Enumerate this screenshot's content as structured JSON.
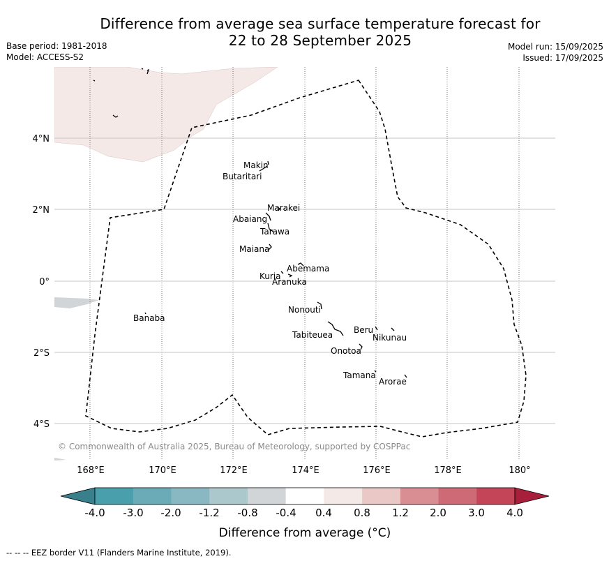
{
  "header": {
    "title_line1": "Difference from average sea surface temperature forecast for",
    "title_line2": "22 to 28 September 2025",
    "base_period": "Base period: 1981-2018",
    "model": "Model: ACCESS-S2",
    "model_run": "Model run: 15/09/2025",
    "issued": "Issued: 17/09/2025"
  },
  "map": {
    "lon_ticks": [
      "168°E",
      "170°E",
      "172°E",
      "174°E",
      "176°E",
      "178°E",
      "180°"
    ],
    "lat_ticks": [
      "4°N",
      "2°N",
      "0°",
      "2°S",
      "4°S"
    ],
    "islands": [
      "Makin",
      "Butaritari",
      "Marakei",
      "Abaiang",
      "Tarawa",
      "Maiana",
      "Abemama",
      "Kuria",
      "Aranuka",
      "Banaba",
      "Nonouti",
      "Beru",
      "Nikunau",
      "Tabiteuea",
      "Onotoa",
      "Tamana",
      "Arorae"
    ],
    "copyright": "© Commonwealth of Australia 2025, Bureau of Meteorology, supported by COSPPac",
    "shaded_colors": {
      "warm_0.4_0.8": "#f5e9e8",
      "cool_-0.8_-0.4": "#d1d5d7"
    }
  },
  "colorbar": {
    "title": "Difference from average (°C)",
    "ticks": [
      "-4.0",
      "-3.0",
      "-2.0",
      "-1.2",
      "-0.8",
      "-0.4",
      "0.4",
      "0.8",
      "1.2",
      "2.0",
      "3.0",
      "4.0"
    ],
    "colors": [
      "#4a9fac",
      "#6aabb7",
      "#8ab8c2",
      "#abc8cc",
      "#d1d5d7",
      "#ffffff",
      "#f5e9e8",
      "#eac8c5",
      "#d98e94",
      "#ce6a76",
      "#c44557"
    ],
    "under_color": "#3a7f8c",
    "over_color": "#a81f3c"
  },
  "footer": {
    "text": "--  --  -- EEZ border V11 (Flanders Marine Institute, 2019)."
  }
}
